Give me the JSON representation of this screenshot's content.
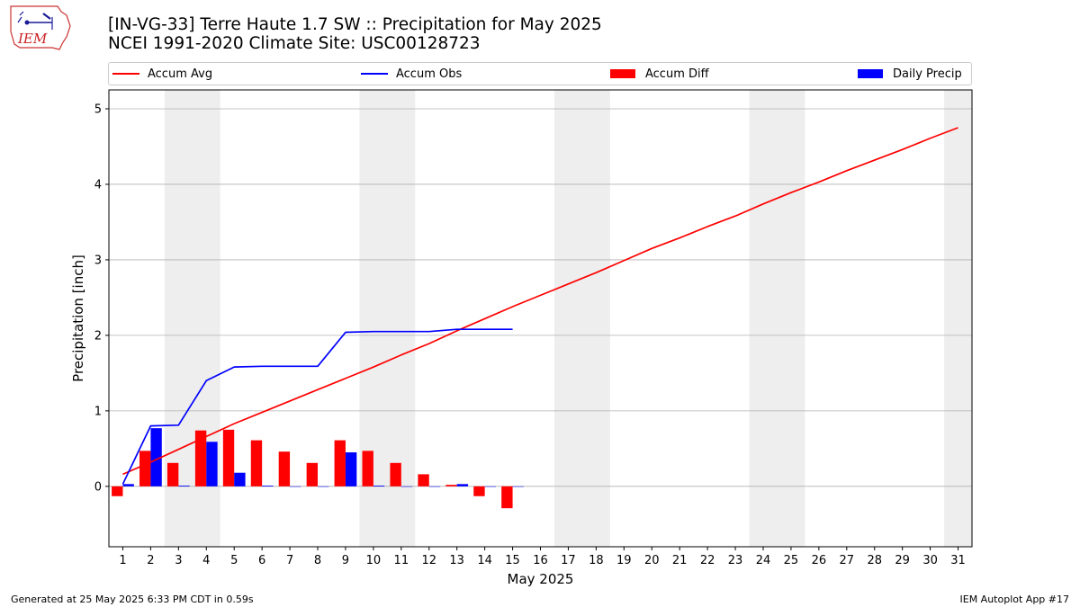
{
  "header": {
    "title_line1": "[IN-VG-33] Terre Haute 1.7 SW :: Precipitation for May 2025",
    "title_line2": "NCEI 1991-2020 Climate Site: USC00128723",
    "logo_text": "IEM"
  },
  "footer": {
    "left": "Generated at 25 May 2025 6:33 PM CDT in 0.59s",
    "right": "IEM Autoplot App #17"
  },
  "chart_data": {
    "type": "bar",
    "xlabel": "May 2025",
    "ylabel": "Precipitation [inch]",
    "xlim": [
      0.5,
      31.5
    ],
    "ylim": [
      -0.8,
      5.25
    ],
    "yticks": [
      0,
      1,
      2,
      3,
      4,
      5
    ],
    "days": [
      1,
      2,
      3,
      4,
      5,
      6,
      7,
      8,
      9,
      10,
      11,
      12,
      13,
      14,
      15,
      16,
      17,
      18,
      19,
      20,
      21,
      22,
      23,
      24,
      25,
      26,
      27,
      28,
      29,
      30,
      31
    ],
    "weekend_spans": [
      [
        2.5,
        4.5
      ],
      [
        9.5,
        11.5
      ],
      [
        16.5,
        18.5
      ],
      [
        23.5,
        25.5
      ],
      [
        30.5,
        31.5
      ]
    ],
    "grid": "horizontal",
    "legend_position": "top",
    "colors": {
      "accum_avg": "#ff0000",
      "accum_obs": "#0000ff",
      "accum_diff": "#ff0000",
      "daily_precip": "#0000ff",
      "weekend": "#eeeeee"
    },
    "series": [
      {
        "name": "Accum Avg",
        "kind": "line",
        "values": [
          0.16,
          0.32,
          0.49,
          0.66,
          0.83,
          0.98,
          1.13,
          1.28,
          1.43,
          1.58,
          1.74,
          1.89,
          2.06,
          2.22,
          2.38,
          2.53,
          2.68,
          2.83,
          2.99,
          3.15,
          3.29,
          3.44,
          3.58,
          3.74,
          3.89,
          4.03,
          4.18,
          4.32,
          4.46,
          4.61,
          4.75
        ]
      },
      {
        "name": "Accum Obs",
        "kind": "line",
        "values": [
          0.03,
          0.8,
          0.81,
          1.4,
          1.58,
          1.59,
          1.59,
          1.59,
          2.04,
          2.05,
          2.05,
          2.05,
          2.08,
          2.08,
          2.08
        ]
      },
      {
        "name": "Accum Diff",
        "kind": "bar",
        "values": [
          -0.13,
          0.47,
          0.31,
          0.74,
          0.75,
          0.61,
          0.46,
          0.31,
          0.61,
          0.47,
          0.31,
          0.16,
          0.02,
          -0.13,
          -0.29
        ]
      },
      {
        "name": "Daily Precip",
        "kind": "bar",
        "values": [
          0.03,
          0.77,
          0.01,
          0.59,
          0.18,
          0.01,
          0.0,
          0.0,
          0.45,
          0.01,
          0.0,
          0.0,
          0.03,
          0.0,
          0.0
        ]
      }
    ]
  }
}
